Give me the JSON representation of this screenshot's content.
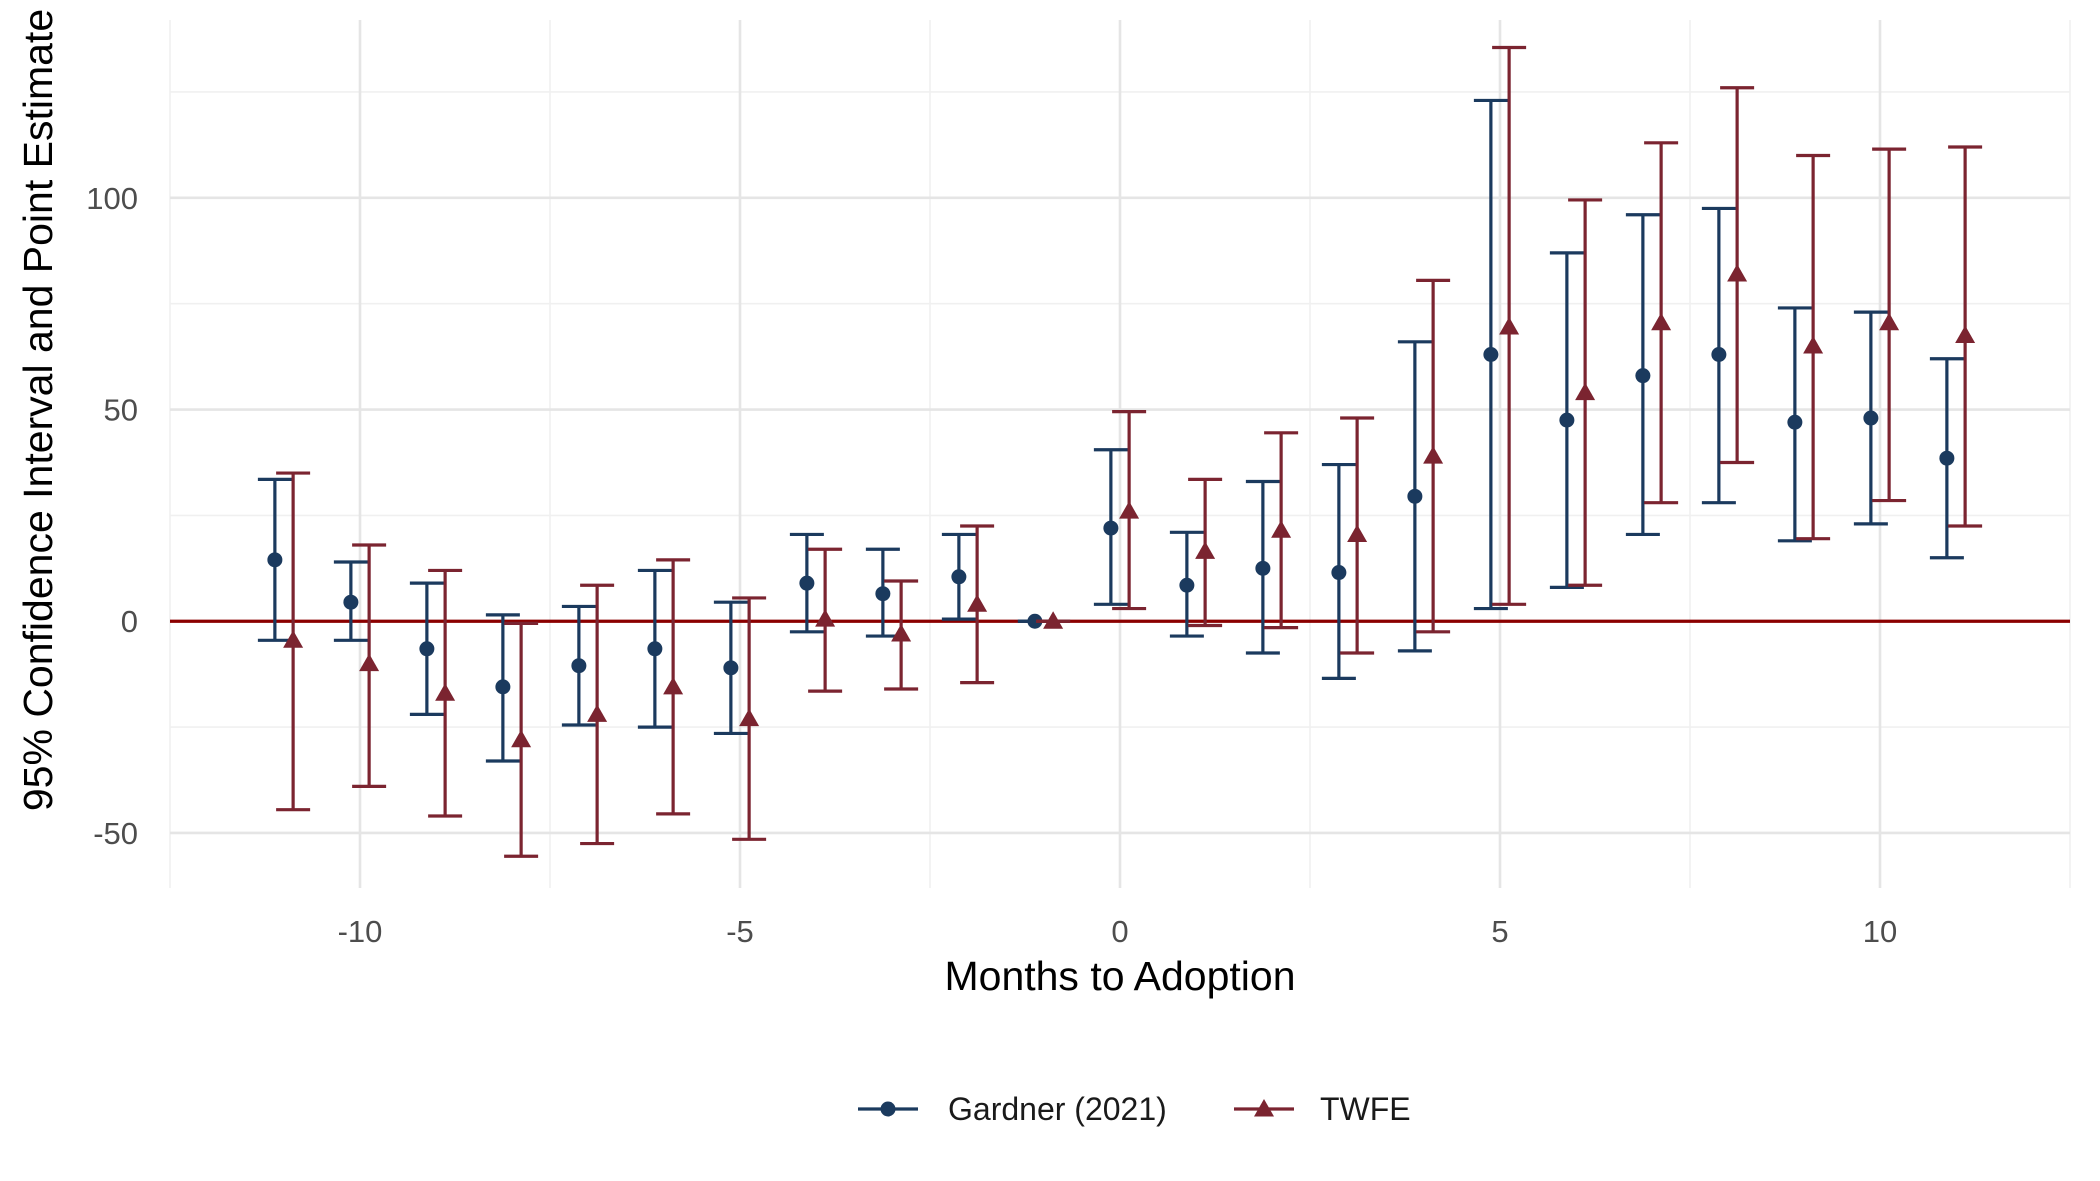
{
  "chart_data": {
    "type": "scatter",
    "subtype": "coefficient plot with 95% confidence interval error bars",
    "title": "",
    "xlabel": "Months to Adoption",
    "ylabel": "95% Confidence Interval and Point Estimate",
    "xlim": [
      -12.5,
      12.5
    ],
    "ylim": [
      -63,
      142
    ],
    "x_ticks": [
      -10,
      -5,
      0,
      5,
      10
    ],
    "x_tick_labels": [
      "-10",
      "-5",
      "0",
      "5",
      "10"
    ],
    "y_ticks": [
      -50,
      0,
      50,
      100
    ],
    "y_tick_labels": [
      "-50",
      "0",
      "50",
      "100"
    ],
    "grid": true,
    "legend_position": "bottom",
    "reference_line": {
      "y": 0,
      "color": "#8b0000"
    },
    "series": [
      {
        "name": "Gardner (2021)",
        "color": "#1b3a5e",
        "marker": "circle",
        "points": [
          {
            "x": -11,
            "y": 14.5,
            "lo": -4.5,
            "hi": 33.5
          },
          {
            "x": -10,
            "y": 4.5,
            "lo": -4.5,
            "hi": 14
          },
          {
            "x": -9,
            "y": -6.5,
            "lo": -22,
            "hi": 9
          },
          {
            "x": -8,
            "y": -15.5,
            "lo": -33,
            "hi": 1.5
          },
          {
            "x": -7,
            "y": -10.5,
            "lo": -24.5,
            "hi": 3.5
          },
          {
            "x": -6,
            "y": -6.5,
            "lo": -25,
            "hi": 12
          },
          {
            "x": -5,
            "y": -11,
            "lo": -26.5,
            "hi": 4.5
          },
          {
            "x": -4,
            "y": 9,
            "lo": -2.5,
            "hi": 20.5
          },
          {
            "x": -3,
            "y": 6.5,
            "lo": -3.5,
            "hi": 17
          },
          {
            "x": -2,
            "y": 10.5,
            "lo": 0.5,
            "hi": 20.5
          },
          {
            "x": -1,
            "y": 0,
            "lo": 0,
            "hi": 0
          },
          {
            "x": 0,
            "y": 22,
            "lo": 4,
            "hi": 40.5
          },
          {
            "x": 1,
            "y": 8.5,
            "lo": -3.5,
            "hi": 21
          },
          {
            "x": 2,
            "y": 12.5,
            "lo": -7.5,
            "hi": 33
          },
          {
            "x": 3,
            "y": 11.5,
            "lo": -13.5,
            "hi": 37
          },
          {
            "x": 4,
            "y": 29.5,
            "lo": -7,
            "hi": 66
          },
          {
            "x": 5,
            "y": 63,
            "lo": 3,
            "hi": 123
          },
          {
            "x": 6,
            "y": 47.5,
            "lo": 8,
            "hi": 87
          },
          {
            "x": 7,
            "y": 58,
            "lo": 20.5,
            "hi": 96
          },
          {
            "x": 8,
            "y": 63,
            "lo": 28,
            "hi": 97.5
          },
          {
            "x": 9,
            "y": 47,
            "lo": 19,
            "hi": 74
          },
          {
            "x": 10,
            "y": 48,
            "lo": 23,
            "hi": 73
          },
          {
            "x": 11,
            "y": 38.5,
            "lo": 15,
            "hi": 62
          }
        ]
      },
      {
        "name": "TWFE",
        "color": "#7b2430",
        "marker": "triangle",
        "points": [
          {
            "x": -11,
            "y": -4.5,
            "lo": -44.5,
            "hi": 35
          },
          {
            "x": -10,
            "y": -10,
            "lo": -39,
            "hi": 18
          },
          {
            "x": -9,
            "y": -17,
            "lo": -46,
            "hi": 12
          },
          {
            "x": -8,
            "y": -28,
            "lo": -55.5,
            "hi": -0.5
          },
          {
            "x": -7,
            "y": -22,
            "lo": -52.5,
            "hi": 8.5
          },
          {
            "x": -6,
            "y": -15.5,
            "lo": -45.5,
            "hi": 14.5
          },
          {
            "x": -5,
            "y": -23,
            "lo": -51.5,
            "hi": 5.5
          },
          {
            "x": -4,
            "y": 0.5,
            "lo": -16.5,
            "hi": 17
          },
          {
            "x": -3,
            "y": -3,
            "lo": -16,
            "hi": 9.5
          },
          {
            "x": -2,
            "y": 4,
            "lo": -14.5,
            "hi": 22.5
          },
          {
            "x": -1,
            "y": 0,
            "lo": 0,
            "hi": 0
          },
          {
            "x": 0,
            "y": 26,
            "lo": 3,
            "hi": 49.5
          },
          {
            "x": 1,
            "y": 16.5,
            "lo": -1,
            "hi": 33.5
          },
          {
            "x": 2,
            "y": 21.5,
            "lo": -1.5,
            "hi": 44.5
          },
          {
            "x": 3,
            "y": 20.5,
            "lo": -7.5,
            "hi": 48
          },
          {
            "x": 4,
            "y": 39,
            "lo": -2.5,
            "hi": 80.5
          },
          {
            "x": 5,
            "y": 69.5,
            "lo": 4,
            "hi": 135.5
          },
          {
            "x": 6,
            "y": 54,
            "lo": 8.5,
            "hi": 99.5
          },
          {
            "x": 7,
            "y": 70.5,
            "lo": 28,
            "hi": 113
          },
          {
            "x": 8,
            "y": 82,
            "lo": 37.5,
            "hi": 126
          },
          {
            "x": 9,
            "y": 65,
            "lo": 19.5,
            "hi": 110
          },
          {
            "x": 10,
            "y": 70.5,
            "lo": 28.5,
            "hi": 111.5
          },
          {
            "x": 11,
            "y": 67.5,
            "lo": 22.5,
            "hi": 112
          }
        ]
      }
    ]
  }
}
